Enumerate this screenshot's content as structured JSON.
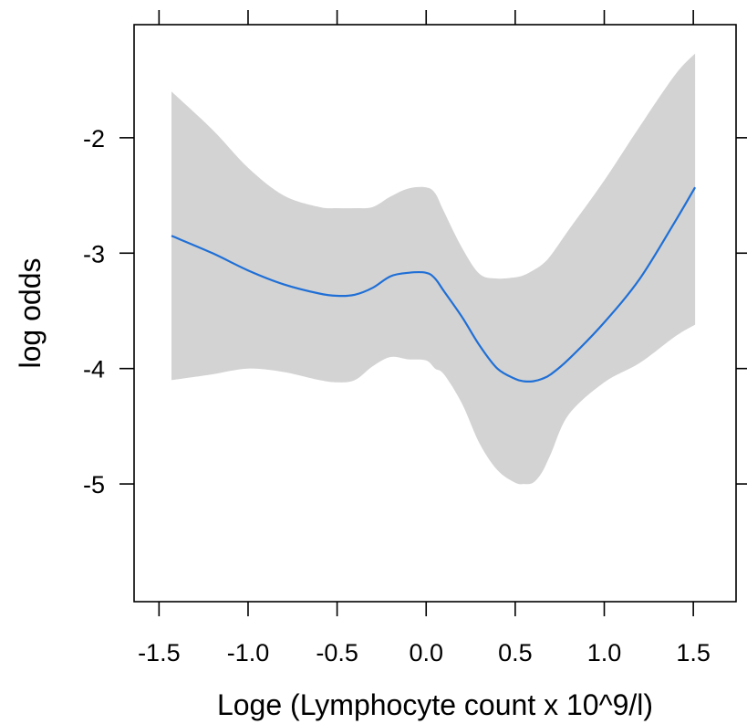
{
  "chart_data": {
    "type": "line",
    "title": "",
    "xlabel": "Loge (Lymphocyte count x 10^9/l)",
    "ylabel": "log odds",
    "xlim": [
      -1.64,
      1.74
    ],
    "ylim": [
      -6.02,
      -1.02
    ],
    "xticks": [
      -1.5,
      -1.0,
      -0.5,
      0.0,
      0.5,
      1.0,
      1.5
    ],
    "xtick_labels": [
      "-1.5",
      "-1.0",
      "-0.5",
      "0.0",
      "0.5",
      "1.0",
      "1.5"
    ],
    "yticks": [
      -2,
      -3,
      -4,
      -5
    ],
    "ytick_labels": [
      "-2",
      "-3",
      "-4",
      "-5"
    ],
    "grid": false,
    "series": [
      {
        "line_color": "#1f6fd6",
        "band_color": "#d3d3d3",
        "x": [
          -1.43,
          -1.2,
          -1.0,
          -0.8,
          -0.6,
          -0.5,
          -0.4,
          -0.3,
          -0.2,
          -0.1,
          0.0,
          0.05,
          0.1,
          0.2,
          0.3,
          0.4,
          0.5,
          0.55,
          0.6,
          0.65,
          0.7,
          0.8,
          1.0,
          1.2,
          1.4,
          1.51
        ],
        "y": [
          -2.85,
          -3.0,
          -3.15,
          -3.27,
          -3.35,
          -3.37,
          -3.36,
          -3.3,
          -3.2,
          -3.17,
          -3.17,
          -3.22,
          -3.33,
          -3.55,
          -3.8,
          -4.0,
          -4.09,
          -4.11,
          -4.11,
          -4.09,
          -4.05,
          -3.92,
          -3.6,
          -3.22,
          -2.72,
          -2.43
        ],
        "lower": [
          -4.1,
          -4.05,
          -4.0,
          -4.03,
          -4.1,
          -4.12,
          -4.1,
          -3.98,
          -3.9,
          -3.92,
          -3.93,
          -4.0,
          -4.05,
          -4.3,
          -4.65,
          -4.88,
          -4.99,
          -5.0,
          -4.99,
          -4.9,
          -4.74,
          -4.4,
          -4.12,
          -3.95,
          -3.72,
          -3.62
        ],
        "upper": [
          -1.6,
          -1.93,
          -2.26,
          -2.5,
          -2.6,
          -2.61,
          -2.61,
          -2.6,
          -2.51,
          -2.44,
          -2.43,
          -2.48,
          -2.64,
          -2.95,
          -3.18,
          -3.22,
          -3.21,
          -3.19,
          -3.15,
          -3.1,
          -3.02,
          -2.8,
          -2.37,
          -1.9,
          -1.45,
          -1.27
        ]
      }
    ]
  }
}
